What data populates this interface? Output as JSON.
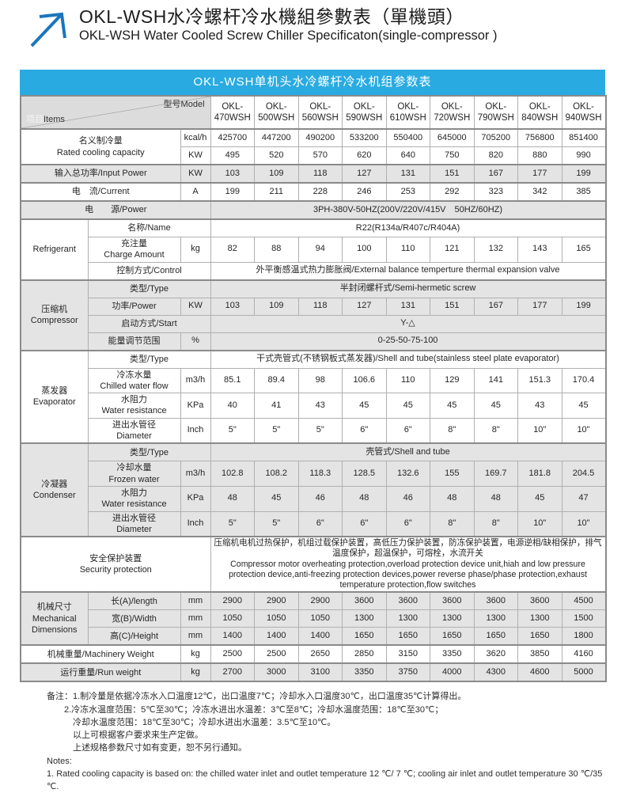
{
  "page": {
    "title_zh": "OKL-WSH水冷螺杆冷水機組參數表（單機頭）",
    "title_en": "OKL-WSH Water Cooled Screw Chiller Specificaton(single-compressor )",
    "banner": "OKL-WSH单机头水冷螺杆冷水机组参数表"
  },
  "colors": {
    "banner_blue": "#29abe2",
    "logo_blue": "#1b75bc",
    "row_gray": "#e4e4e4",
    "header_gray": "#dcdcdc",
    "border": "#b0b0b0",
    "border_strong": "#8a8a8a"
  },
  "icons": {
    "logo": "arrow-up-right-icon"
  },
  "table": {
    "corner": {
      "items_zh": "项目",
      "items_en": "Items",
      "model": "型号Model"
    },
    "models": [
      "OKL-470WSH",
      "OKL-500WSH",
      "OKL-560WSH",
      "OKL-590WSH",
      "OKL-610WSH",
      "OKL-720WSH",
      "OKL-790WSH",
      "OKL-840WSH",
      "OKL-940WSH"
    ],
    "rows": [
      {
        "sec": true,
        "bg": "w",
        "label": {
          "lines": [
            "名义制冷量",
            "Rated cooling capacity"
          ],
          "cols": 2,
          "rows": 2
        },
        "unit": "kcal/h",
        "values": [
          "425700",
          "447200",
          "490200",
          "533200",
          "550400",
          "645000",
          "705200",
          "756800",
          "851400"
        ]
      },
      {
        "bg": "w",
        "unit": "KW",
        "values": [
          "495",
          "520",
          "570",
          "620",
          "640",
          "750",
          "820",
          "880",
          "990"
        ]
      },
      {
        "sec": true,
        "bg": "g",
        "label": {
          "lines": [
            "输入总功率/Input Power"
          ],
          "cols": 2
        },
        "unit": "KW",
        "values": [
          "103",
          "109",
          "118",
          "127",
          "131",
          "151",
          "167",
          "177",
          "199"
        ]
      },
      {
        "sec": true,
        "bg": "w",
        "label": {
          "lines": [
            "电　流/Current"
          ],
          "cols": 2
        },
        "unit": "A",
        "values": [
          "199",
          "211",
          "228",
          "246",
          "253",
          "292",
          "323",
          "342",
          "385"
        ]
      },
      {
        "sec": true,
        "bg": "g",
        "label": {
          "lines": [
            "电　　源/Power"
          ],
          "cols": 3
        },
        "value": "3PH-380V-50HZ(200V/220V/415V　50HZ/60HZ)"
      },
      {
        "sec": true,
        "bg": "w",
        "group": {
          "lines": [
            "Refrigerant"
          ],
          "rows": 3
        },
        "label": {
          "lines": [
            "名称/Name"
          ],
          "cols": 2
        },
        "value": "R22(R134a/R407c/R404A)"
      },
      {
        "bg": "w",
        "label": {
          "lines": [
            "充注量",
            "Charge Amount"
          ],
          "cols": 1
        },
        "unit": "kg",
        "values": [
          "82",
          "88",
          "94",
          "100",
          "110",
          "121",
          "132",
          "143",
          "165"
        ]
      },
      {
        "bg": "w",
        "label": {
          "lines": [
            "控制方式/Control"
          ],
          "cols": 2
        },
        "value": "外平衡感温式热力膨胀阀/External balance temperture thermal expansion valve"
      },
      {
        "sec": true,
        "bg": "g",
        "group": {
          "lines": [
            "压缩机",
            "Compressor"
          ],
          "rows": 4
        },
        "label": {
          "lines": [
            "类型/Type"
          ],
          "cols": 2
        },
        "value": "半封闭螺杆式/Semi-hermetic screw"
      },
      {
        "bg": "g",
        "label": {
          "lines": [
            "功率/Power"
          ],
          "cols": 1
        },
        "unit": "KW",
        "values": [
          "103",
          "109",
          "118",
          "127",
          "131",
          "151",
          "167",
          "177",
          "199"
        ]
      },
      {
        "bg": "g",
        "label": {
          "lines": [
            "启动方式/Start"
          ],
          "cols": 2
        },
        "value": "Y-△"
      },
      {
        "bg": "g",
        "label": {
          "lines": [
            "能量调节范围"
          ],
          "cols": 1
        },
        "unit": "%",
        "value": "0-25-50-75-100"
      },
      {
        "sec": true,
        "bg": "w",
        "group": {
          "lines": [
            "蒸发器",
            "Evaporator"
          ],
          "rows": 4
        },
        "label": {
          "lines": [
            "类型/Type"
          ],
          "cols": 2
        },
        "value": "干式壳管式(不锈钢板式蒸发器)/Shell and tube(stainless steel plate evaporator)"
      },
      {
        "bg": "w",
        "label": {
          "lines": [
            "冷冻水量",
            "Chilled water flow"
          ],
          "cols": 1
        },
        "unit": "m3/h",
        "values": [
          "85.1",
          "89.4",
          "98",
          "106.6",
          "110",
          "129",
          "141",
          "151.3",
          "170.4"
        ]
      },
      {
        "bg": "w",
        "label": {
          "lines": [
            "水阻力",
            "Water resistance"
          ],
          "cols": 1
        },
        "unit": "KPa",
        "values": [
          "40",
          "41",
          "43",
          "45",
          "45",
          "45",
          "45",
          "43",
          "45"
        ]
      },
      {
        "bg": "w",
        "label": {
          "lines": [
            "进出水管径",
            "Diameter"
          ],
          "cols": 1
        },
        "unit": "Inch",
        "values": [
          "5\"",
          "5\"",
          "5\"",
          "6\"",
          "6\"",
          "8\"",
          "8\"",
          "10\"",
          "10\""
        ]
      },
      {
        "sec": true,
        "bg": "g",
        "group": {
          "lines": [
            "冷凝器",
            "Condenser"
          ],
          "rows": 4
        },
        "label": {
          "lines": [
            "类型/Type"
          ],
          "cols": 2
        },
        "value": "壳管式/Shell and tube"
      },
      {
        "bg": "g",
        "label": {
          "lines": [
            "冷却水量",
            "Frozen water"
          ],
          "cols": 1
        },
        "unit": "m3/h",
        "values": [
          "102.8",
          "108.2",
          "118.3",
          "128.5",
          "132.6",
          "155",
          "169.7",
          "181.8",
          "204.5"
        ]
      },
      {
        "bg": "g",
        "label": {
          "lines": [
            "水阻力",
            "Water resistance"
          ],
          "cols": 1
        },
        "unit": "KPa",
        "values": [
          "48",
          "45",
          "46",
          "48",
          "46",
          "48",
          "48",
          "45",
          "47"
        ]
      },
      {
        "bg": "g",
        "label": {
          "lines": [
            "进出水管径",
            "Diameter"
          ],
          "cols": 1
        },
        "unit": "Inch",
        "values": [
          "5\"",
          "5\"",
          "6\"",
          "6\"",
          "6\"",
          "8\"",
          "8\"",
          "10\"",
          "10\""
        ]
      },
      {
        "sec": true,
        "bg": "w",
        "label": {
          "lines": [
            "安全保护装置",
            "Security protection"
          ],
          "cols": 3
        },
        "value_block": [
          "压缩机电机过热保护，机组过载保护装置，高低压力保护装置，防冻保护装置，电源逆相/缺相保护，排气温度保护，超温保护，可熔栓，水流开关",
          "Compressor motor overheating protection,overload protection device unit,hiah and low pressure protection device,anti-freezing protection devices,power reverse phase/phase protection,exhaust temperature protection,flow switches"
        ]
      },
      {
        "sec": true,
        "bg": "g",
        "group": {
          "lines": [
            "机械尺寸",
            "Mechanical",
            "Dimensions"
          ],
          "rows": 3
        },
        "label": {
          "lines": [
            "长(A)/length"
          ],
          "cols": 1
        },
        "unit": "mm",
        "values": [
          "2900",
          "2900",
          "2900",
          "3600",
          "3600",
          "3600",
          "3600",
          "3600",
          "4500"
        ]
      },
      {
        "bg": "g",
        "label": {
          "lines": [
            "宽(B)/Width"
          ],
          "cols": 1
        },
        "unit": "mm",
        "values": [
          "1050",
          "1050",
          "1050",
          "1300",
          "1300",
          "1300",
          "1300",
          "1300",
          "1500"
        ]
      },
      {
        "bg": "g",
        "label": {
          "lines": [
            "高(C)/Height"
          ],
          "cols": 1
        },
        "unit": "mm",
        "values": [
          "1400",
          "1400",
          "1400",
          "1650",
          "1650",
          "1650",
          "1650",
          "1650",
          "1800"
        ]
      },
      {
        "sec": true,
        "bg": "w",
        "label": {
          "lines": [
            "机械重量/Machinery Weight"
          ],
          "cols": 2
        },
        "unit": "kg",
        "values": [
          "2500",
          "2500",
          "2650",
          "2850",
          "3150",
          "3350",
          "3620",
          "3850",
          "4160"
        ]
      },
      {
        "sec": true,
        "bg": "g",
        "label": {
          "lines": [
            "运行重量/Run weight"
          ],
          "cols": 2
        },
        "unit": "kg",
        "values": [
          "2700",
          "3000",
          "3100",
          "3350",
          "3750",
          "4000",
          "4300",
          "4600",
          "5000"
        ]
      }
    ]
  },
  "notes": {
    "lines": [
      "备注：1.制冷量是依据冷冻水入口温度12℃，出口温度7℃；冷却水入口温度30℃，出口温度35℃计算得出。",
      "　　2.冷冻水温度范围：5℃至30℃；冷冻水进出水温差：3℃至8℃；冷却水温度范围：18℃至30℃；",
      "　　　冷却水温度范围：18℃至30℃；冷却水进出水温差：3.5℃至10℃。",
      "　　　以上可根据客户要求来生产定做。",
      "　　　上述规格参数尺寸如有变更，恕不另行通知。",
      "Notes:",
      "1. Rated cooling capacity is based on: the chilled water inlet and outlet temperature 12 ℃/ 7 ℃; cooling air inlet and outlet temperature 30 ℃/35 ℃."
    ]
  }
}
